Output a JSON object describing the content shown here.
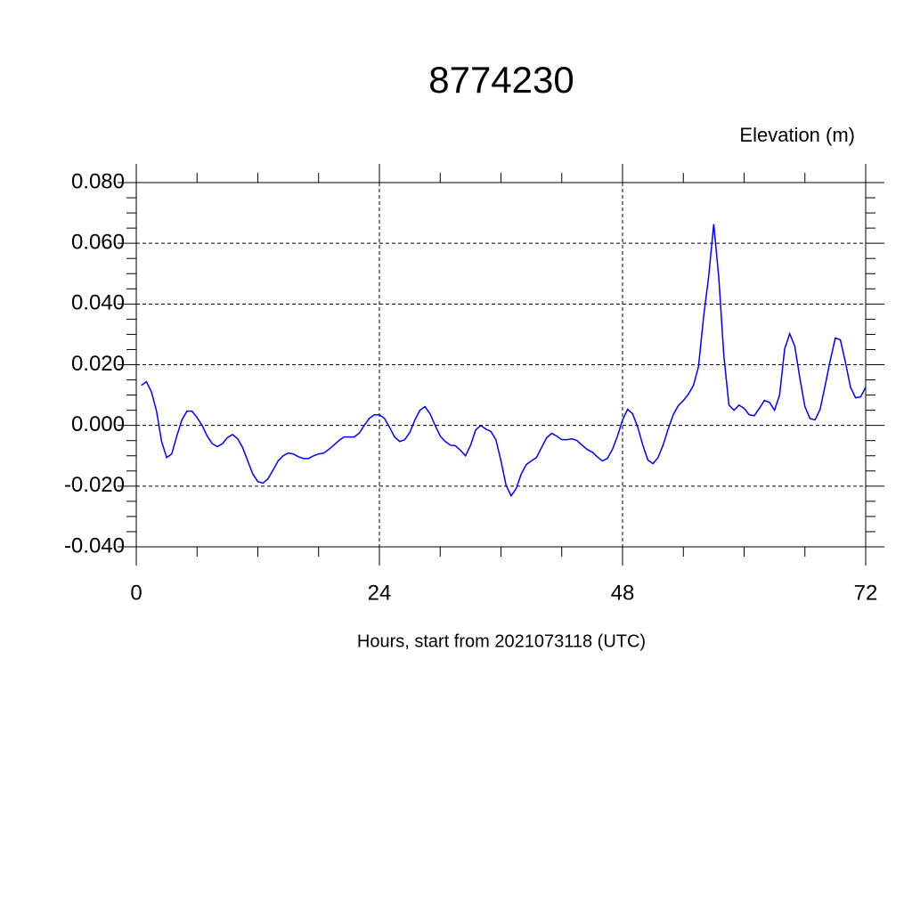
{
  "chart_data": {
    "type": "line",
    "title": "8774230",
    "ylabel": "Elevation (m)",
    "xlabel": "Hours, start from 2021073118 (UTC)",
    "x": [
      0.5,
      1,
      1.5,
      2,
      2.5,
      3,
      3.5,
      4,
      4.5,
      5,
      5.5,
      6,
      6.5,
      7,
      7.5,
      8,
      8.5,
      9,
      9.5,
      10,
      10.5,
      11,
      11.5,
      12,
      12.5,
      13,
      13.5,
      14,
      14.5,
      15,
      15.5,
      16,
      16.5,
      17,
      17.5,
      18,
      18.5,
      19,
      19.5,
      20,
      20.5,
      21,
      21.5,
      22,
      22.5,
      23,
      23.5,
      24,
      24.5,
      25,
      25.5,
      26,
      26.5,
      27,
      27.5,
      28,
      28.5,
      29,
      29.5,
      30,
      30.5,
      31,
      31.5,
      32,
      32.5,
      33,
      33.5,
      34,
      34.5,
      35,
      35.5,
      36,
      36.5,
      37,
      37.5,
      38,
      38.5,
      39,
      39.5,
      40,
      40.5,
      41,
      41.5,
      42,
      42.5,
      43,
      43.5,
      44,
      44.5,
      45,
      45.5,
      46,
      46.5,
      47,
      47.5,
      48,
      48.5,
      49,
      49.5,
      50,
      50.5,
      51,
      51.5,
      52,
      52.5,
      53,
      53.5,
      54,
      54.5,
      55,
      55.5,
      56,
      56.5,
      57,
      57.5,
      58,
      58.5,
      59,
      59.5,
      60,
      60.5,
      61,
      61.5,
      62,
      62.5,
      63,
      63.5,
      64,
      64.5,
      65,
      65.5,
      66,
      66.5,
      67,
      67.5,
      68,
      68.5,
      69,
      69.5,
      70,
      70.5,
      71,
      71.5,
      72
    ],
    "series": [
      {
        "color": "#0000ff",
        "values": [
          0.0132,
          0.0144,
          0.011,
          0.0047,
          -0.0053,
          -0.0106,
          -0.0094,
          -0.0035,
          0.0018,
          0.0047,
          0.0047,
          0.0026,
          0,
          -0.0035,
          -0.006,
          -0.007,
          -0.006,
          -0.004,
          -0.003,
          -0.0044,
          -0.0073,
          -0.0117,
          -0.016,
          -0.0185,
          -0.019,
          -0.0176,
          -0.0147,
          -0.0117,
          -0.01,
          -0.0091,
          -0.0094,
          -0.0103,
          -0.0109,
          -0.0109,
          -0.01,
          -0.0094,
          -0.0091,
          -0.0079,
          -0.0065,
          -0.005,
          -0.0038,
          -0.0038,
          -0.0038,
          -0.0026,
          0,
          0.0023,
          0.0035,
          0.0035,
          0.0023,
          -0.0006,
          -0.0038,
          -0.0053,
          -0.0047,
          -0.0023,
          0.0018,
          0.005,
          0.0062,
          0.0038,
          0,
          -0.0035,
          -0.0053,
          -0.0065,
          -0.0067,
          -0.0082,
          -0.01,
          -0.0065,
          -0.0015,
          0,
          -0.0012,
          -0.002,
          -0.0047,
          -0.0117,
          -0.0197,
          -0.0232,
          -0.0208,
          -0.016,
          -0.0129,
          -0.0117,
          -0.0106,
          -0.0073,
          -0.0041,
          -0.0026,
          -0.0035,
          -0.0047,
          -0.0047,
          -0.0044,
          -0.005,
          -0.0065,
          -0.0079,
          -0.0088,
          -0.0103,
          -0.0117,
          -0.0109,
          -0.0079,
          -0.0035,
          0.0018,
          0.0053,
          0.0038,
          -0.0006,
          -0.0065,
          -0.0114,
          -0.0126,
          -0.0106,
          -0.0065,
          -0.0012,
          0.0035,
          0.0065,
          0.0082,
          0.0103,
          0.0132,
          0.0194,
          0.0358,
          0.049,
          0.0663,
          0.0487,
          0.0229,
          0.0067,
          0.005,
          0.0067,
          0.0056,
          0.0035,
          0.0032,
          0.0056,
          0.0082,
          0.0076,
          0.005,
          0.01,
          0.0252,
          0.0302,
          0.0261,
          0.0156,
          0.0062,
          0.0023,
          0.0018,
          0.0053,
          0.0132,
          0.0214,
          0.0288,
          0.0282,
          0.0208,
          0.0126,
          0.0091,
          0.0094,
          0.0126
        ]
      }
    ],
    "xlim": [
      0,
      72
    ],
    "xticks": [
      0,
      24,
      48,
      72
    ],
    "ylim": [
      -0.04,
      0.08
    ],
    "yticks": [
      {
        "value": -0.04,
        "label": "-0.040"
      },
      {
        "value": -0.02,
        "label": "-0.020"
      },
      {
        "value": 0,
        "label": "0.000"
      },
      {
        "value": 0.02,
        "label": "0.020"
      },
      {
        "value": 0.04,
        "label": "0.040"
      },
      {
        "value": 0.06,
        "label": "0.060"
      },
      {
        "value": 0.08,
        "label": "0.080"
      }
    ],
    "grid": true
  }
}
